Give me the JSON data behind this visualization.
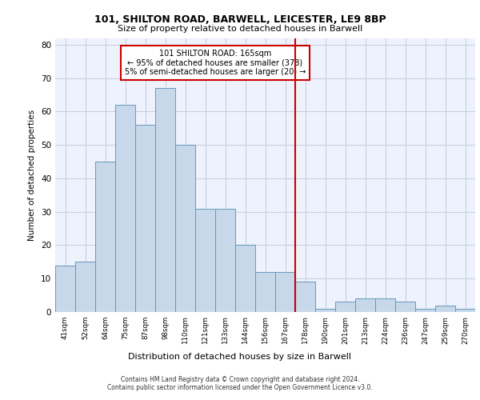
{
  "title1": "101, SHILTON ROAD, BARWELL, LEICESTER, LE9 8BP",
  "title2": "Size of property relative to detached houses in Barwell",
  "xlabel": "Distribution of detached houses by size in Barwell",
  "ylabel": "Number of detached properties",
  "categories": [
    "41sqm",
    "52sqm",
    "64sqm",
    "75sqm",
    "87sqm",
    "98sqm",
    "110sqm",
    "121sqm",
    "133sqm",
    "144sqm",
    "156sqm",
    "167sqm",
    "178sqm",
    "190sqm",
    "201sqm",
    "213sqm",
    "224sqm",
    "236sqm",
    "247sqm",
    "259sqm",
    "270sqm"
  ],
  "values": [
    14,
    15,
    45,
    62,
    56,
    67,
    50,
    31,
    31,
    20,
    12,
    12,
    9,
    1,
    3,
    4,
    4,
    3,
    1,
    2,
    1
  ],
  "bar_color": "#c8d8eb",
  "bar_edge_color": "#6699bb",
  "grid_color": "#c8cfe0",
  "background_color": "#eef2fc",
  "vline_color": "#cc0000",
  "vline_x": 11.5,
  "annotation_text": "101 SHILTON ROAD: 165sqm\n← 95% of detached houses are smaller (378)\n5% of semi-detached houses are larger (20) →",
  "annotation_box_color": "#cc0000",
  "ylim": [
    0,
    82
  ],
  "yticks": [
    0,
    10,
    20,
    30,
    40,
    50,
    60,
    70,
    80
  ],
  "footer1": "Contains HM Land Registry data © Crown copyright and database right 2024.",
  "footer2": "Contains public sector information licensed under the Open Government Licence v3.0."
}
